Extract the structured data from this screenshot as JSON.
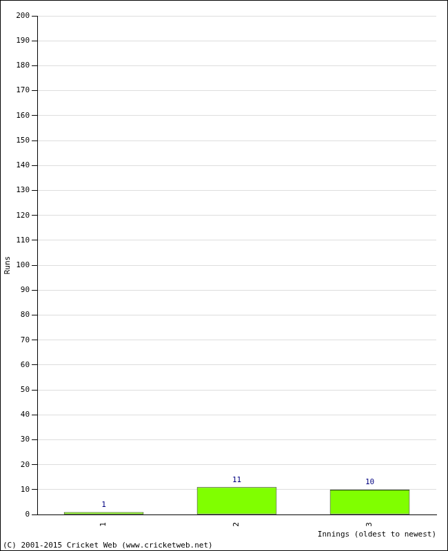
{
  "chart_data": {
    "type": "bar",
    "x_label": "Innings (oldest to newest)",
    "y_label": "Runs",
    "categories": [
      "1",
      "2",
      "3"
    ],
    "values": [
      1,
      11,
      10
    ],
    "color": "#80ff00",
    "ylim": [
      0,
      200
    ],
    "yticks": [
      0,
      10,
      20,
      30,
      40,
      50,
      60,
      70,
      80,
      90,
      100,
      110,
      120,
      130,
      140,
      150,
      160,
      170,
      180,
      190,
      200
    ],
    "grid": true,
    "data_labels": true,
    "annotations": [
      "(C) 2001-2015 Cricket Web (www.cricketweb.net)"
    ]
  }
}
